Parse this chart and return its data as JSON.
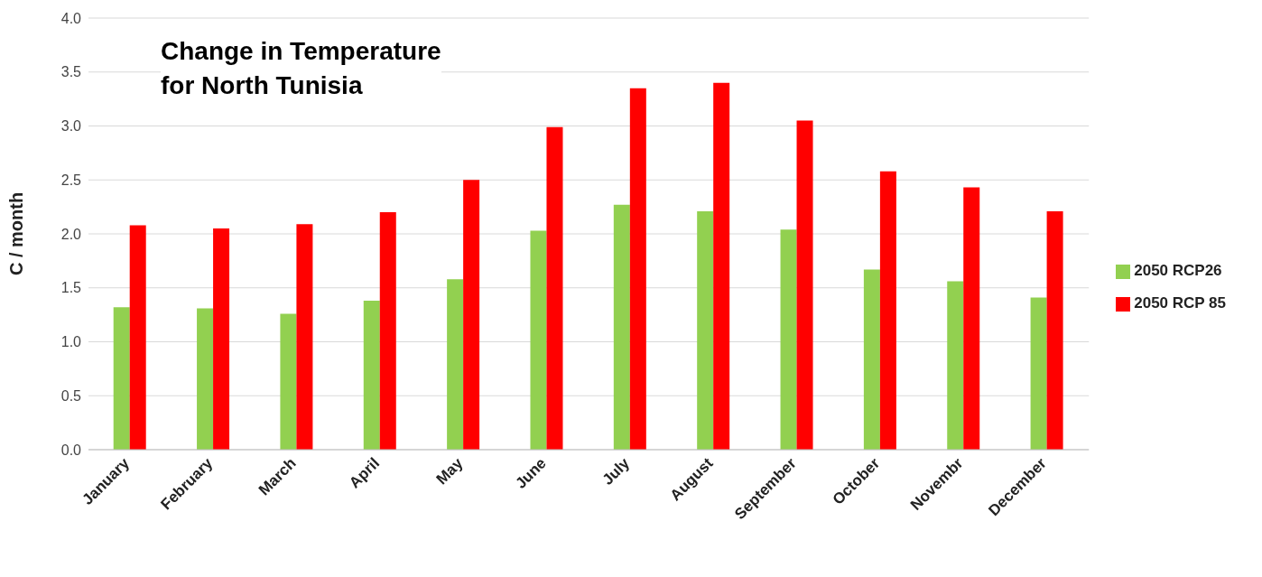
{
  "chart_data": {
    "type": "bar",
    "title": "Change in Temperature\nfor North Tunisia",
    "ylabel": "C / month",
    "categories": [
      "January",
      "February",
      "March",
      "April",
      "May",
      "June",
      "July",
      "August",
      "September",
      "October",
      "Novembr",
      "December"
    ],
    "series": [
      {
        "name": "2050 RCP26",
        "color": "#92d050",
        "values": [
          1.32,
          1.31,
          1.26,
          1.38,
          1.58,
          2.03,
          2.27,
          2.21,
          2.04,
          1.67,
          1.56,
          1.41
        ]
      },
      {
        "name": "2050 RCP 85",
        "color": "#ff0000",
        "values": [
          2.08,
          2.05,
          2.09,
          2.2,
          2.5,
          2.99,
          3.35,
          3.4,
          3.05,
          2.58,
          2.43,
          2.21
        ]
      }
    ],
    "ylim": [
      0,
      4
    ],
    "yticks": [
      {
        "value": 0,
        "label": "0.0"
      },
      {
        "value": 0.5,
        "label": "0.5"
      },
      {
        "value": 1,
        "label": "1.0"
      },
      {
        "value": 1.5,
        "label": "1.5"
      },
      {
        "value": 2,
        "label": "2.0"
      },
      {
        "value": 2.5,
        "label": "2.5"
      },
      {
        "value": 3,
        "label": "3.0"
      },
      {
        "value": 3.5,
        "label": "3.5"
      },
      {
        "value": 4,
        "label": "4.0"
      }
    ],
    "grid": "y",
    "legend": "right"
  }
}
